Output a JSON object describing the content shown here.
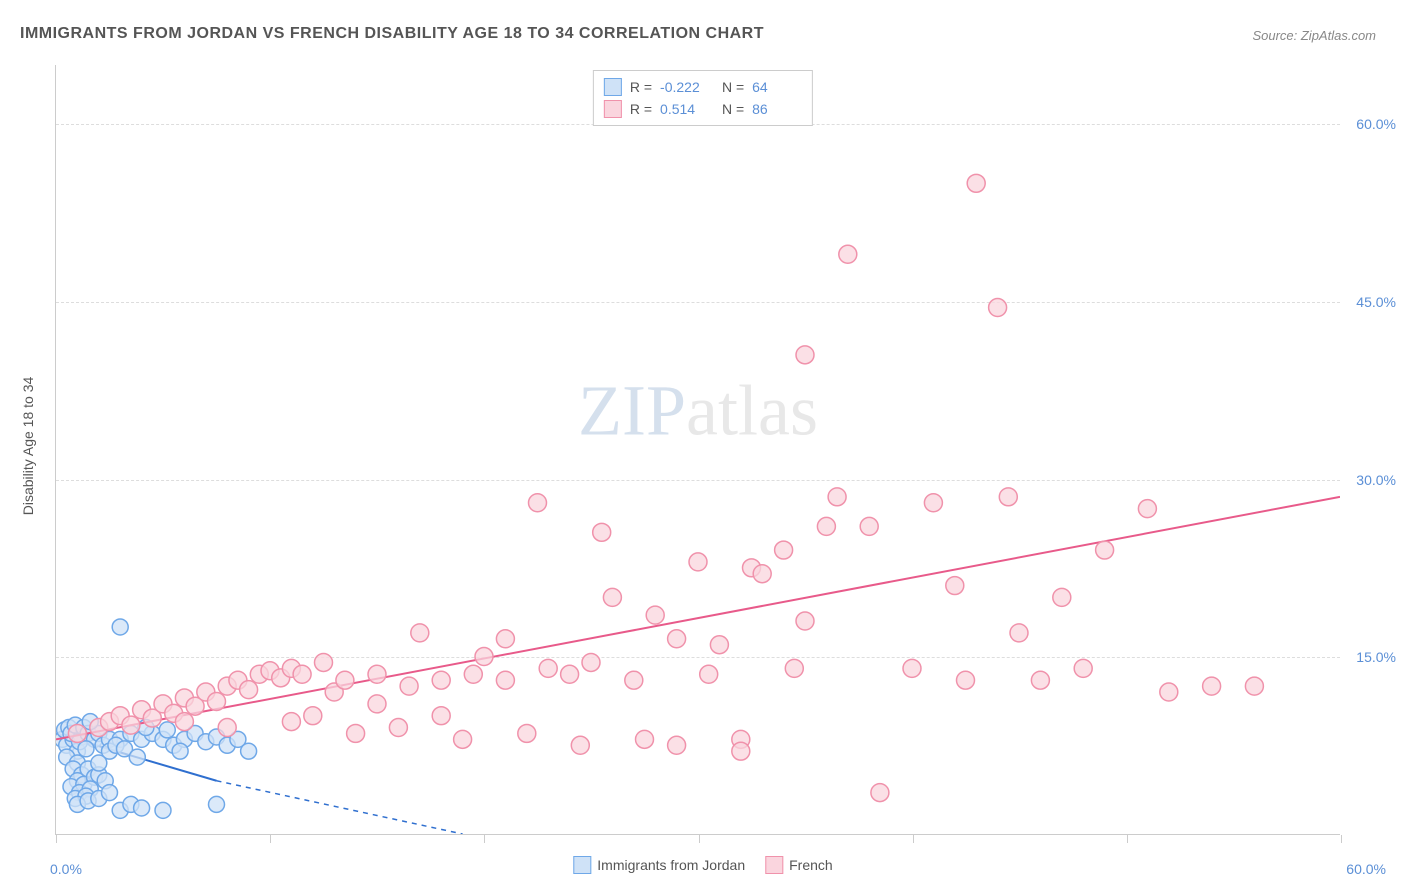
{
  "title": "IMMIGRANTS FROM JORDAN VS FRENCH DISABILITY AGE 18 TO 34 CORRELATION CHART",
  "source_label": "Source: ZipAtlas.com",
  "ylabel": "Disability Age 18 to 34",
  "watermark": {
    "part1": "ZIP",
    "part2": "atlas"
  },
  "chart": {
    "type": "scatter",
    "xlim": [
      0,
      60
    ],
    "ylim": [
      0,
      65
    ],
    "ytick_labels": [
      {
        "value": 15,
        "label": "15.0%"
      },
      {
        "value": 30,
        "label": "30.0%"
      },
      {
        "value": 45,
        "label": "45.0%"
      },
      {
        "value": 60,
        "label": "60.0%"
      }
    ],
    "xtick_positions": [
      0,
      10,
      20,
      30,
      40,
      50,
      60
    ],
    "x_origin_label": "0.0%",
    "x_max_label": "60.0%",
    "background_color": "#ffffff",
    "grid_color": "#dddddd",
    "series": [
      {
        "name": "Immigrants from Jordan",
        "color_fill": "#cfe2f7",
        "color_stroke": "#6fa8e8",
        "line_color": "#2f6fcf",
        "marker_radius": 8,
        "R": "-0.222",
        "N": "64",
        "trend": {
          "x1": 0,
          "y1": 8.5,
          "x2": 7.5,
          "y2": 4.5,
          "dash_x2": 19,
          "dash_y2": 0
        },
        "points": [
          [
            0.3,
            8.0
          ],
          [
            0.5,
            7.5
          ],
          [
            0.4,
            8.8
          ],
          [
            0.8,
            8.0
          ],
          [
            0.6,
            9.0
          ],
          [
            1.0,
            7.0
          ],
          [
            0.7,
            8.5
          ],
          [
            1.2,
            8.2
          ],
          [
            0.9,
            9.2
          ],
          [
            1.1,
            7.8
          ],
          [
            1.3,
            9.0
          ],
          [
            0.5,
            6.5
          ],
          [
            1.5,
            8.5
          ],
          [
            1.0,
            6.0
          ],
          [
            1.8,
            8.0
          ],
          [
            1.4,
            7.2
          ],
          [
            2.0,
            8.5
          ],
          [
            1.6,
            9.5
          ],
          [
            2.2,
            7.5
          ],
          [
            0.8,
            5.5
          ],
          [
            2.5,
            8.0
          ],
          [
            1.2,
            5.0
          ],
          [
            1.0,
            4.5
          ],
          [
            1.5,
            5.5
          ],
          [
            0.7,
            4.0
          ],
          [
            1.3,
            4.2
          ],
          [
            1.8,
            4.8
          ],
          [
            2.0,
            5.0
          ],
          [
            1.1,
            3.5
          ],
          [
            1.6,
            3.8
          ],
          [
            2.3,
            4.5
          ],
          [
            0.9,
            3.0
          ],
          [
            1.4,
            3.2
          ],
          [
            2.5,
            7.0
          ],
          [
            3.0,
            8.0
          ],
          [
            2.8,
            7.5
          ],
          [
            3.5,
            8.5
          ],
          [
            3.2,
            7.2
          ],
          [
            4.0,
            8.0
          ],
          [
            3.8,
            6.5
          ],
          [
            4.5,
            8.5
          ],
          [
            5.0,
            8.0
          ],
          [
            4.2,
            9.0
          ],
          [
            5.5,
            7.5
          ],
          [
            5.2,
            8.8
          ],
          [
            6.0,
            8.0
          ],
          [
            5.8,
            7.0
          ],
          [
            6.5,
            8.5
          ],
          [
            7.0,
            7.8
          ],
          [
            7.5,
            8.2
          ],
          [
            8.0,
            7.5
          ],
          [
            8.5,
            8.0
          ],
          [
            9.0,
            7.0
          ],
          [
            3.0,
            17.5
          ],
          [
            1.0,
            2.5
          ],
          [
            1.5,
            2.8
          ],
          [
            2.0,
            3.0
          ],
          [
            2.5,
            3.5
          ],
          [
            3.0,
            2.0
          ],
          [
            3.5,
            2.5
          ],
          [
            4.0,
            2.2
          ],
          [
            5.0,
            2.0
          ],
          [
            7.5,
            2.5
          ],
          [
            2.0,
            6.0
          ]
        ]
      },
      {
        "name": "French",
        "color_fill": "#fad5de",
        "color_stroke": "#f092ab",
        "line_color": "#e85a8a",
        "marker_radius": 9,
        "R": "0.514",
        "N": "86",
        "trend": {
          "x1": 0,
          "y1": 8.0,
          "x2": 60,
          "y2": 28.5
        },
        "points": [
          [
            1,
            8.5
          ],
          [
            2,
            9.0
          ],
          [
            2.5,
            9.5
          ],
          [
            3,
            10.0
          ],
          [
            3.5,
            9.2
          ],
          [
            4,
            10.5
          ],
          [
            4.5,
            9.8
          ],
          [
            5,
            11.0
          ],
          [
            5.5,
            10.2
          ],
          [
            6,
            11.5
          ],
          [
            6.5,
            10.8
          ],
          [
            7,
            12.0
          ],
          [
            7.5,
            11.2
          ],
          [
            8,
            12.5
          ],
          [
            8.5,
            13.0
          ],
          [
            9,
            12.2
          ],
          [
            9.5,
            13.5
          ],
          [
            10,
            13.8
          ],
          [
            10.5,
            13.2
          ],
          [
            11,
            14.0
          ],
          [
            11.5,
            13.5
          ],
          [
            12,
            10.0
          ],
          [
            12.5,
            14.5
          ],
          [
            13,
            12.0
          ],
          [
            13.5,
            13.0
          ],
          [
            14,
            8.5
          ],
          [
            15,
            13.5
          ],
          [
            16,
            9.0
          ],
          [
            16.5,
            12.5
          ],
          [
            17,
            17.0
          ],
          [
            18,
            13.0
          ],
          [
            19,
            8.0
          ],
          [
            19.5,
            13.5
          ],
          [
            20,
            15.0
          ],
          [
            21,
            13.0
          ],
          [
            22,
            8.5
          ],
          [
            22.5,
            28.0
          ],
          [
            23,
            14.0
          ],
          [
            24,
            13.5
          ],
          [
            24.5,
            7.5
          ],
          [
            25,
            14.5
          ],
          [
            25.5,
            25.5
          ],
          [
            26,
            20.0
          ],
          [
            27,
            13.0
          ],
          [
            27.5,
            8.0
          ],
          [
            28,
            18.5
          ],
          [
            29,
            7.5
          ],
          [
            30,
            23.0
          ],
          [
            30.5,
            13.5
          ],
          [
            31,
            16.0
          ],
          [
            32,
            8.0
          ],
          [
            32.5,
            22.5
          ],
          [
            32,
            7.0
          ],
          [
            34,
            24.0
          ],
          [
            34.5,
            14.0
          ],
          [
            35,
            40.5
          ],
          [
            35,
            18.0
          ],
          [
            36,
            26.0
          ],
          [
            36.5,
            28.5
          ],
          [
            37,
            49.0
          ],
          [
            38,
            26.0
          ],
          [
            38.5,
            3.5
          ],
          [
            40,
            14.0
          ],
          [
            41,
            28.0
          ],
          [
            42,
            21.0
          ],
          [
            42.5,
            13.0
          ],
          [
            43,
            55.0
          ],
          [
            44,
            44.5
          ],
          [
            44.5,
            28.5
          ],
          [
            46,
            13.0
          ],
          [
            47,
            20.0
          ],
          [
            48,
            14.0
          ],
          [
            49,
            24.0
          ],
          [
            51,
            27.5
          ],
          [
            52,
            12.0
          ],
          [
            54,
            12.5
          ],
          [
            56,
            12.5
          ],
          [
            45,
            17.0
          ],
          [
            33,
            22.0
          ],
          [
            29,
            16.5
          ],
          [
            21,
            16.5
          ],
          [
            18,
            10.0
          ],
          [
            15,
            11.0
          ],
          [
            11,
            9.5
          ],
          [
            8,
            9.0
          ],
          [
            6,
            9.5
          ]
        ]
      }
    ]
  },
  "legend_bottom": [
    {
      "label": "Immigrants from Jordan",
      "fill": "#cfe2f7",
      "stroke": "#6fa8e8"
    },
    {
      "label": "French",
      "fill": "#fad5de",
      "stroke": "#f092ab"
    }
  ]
}
